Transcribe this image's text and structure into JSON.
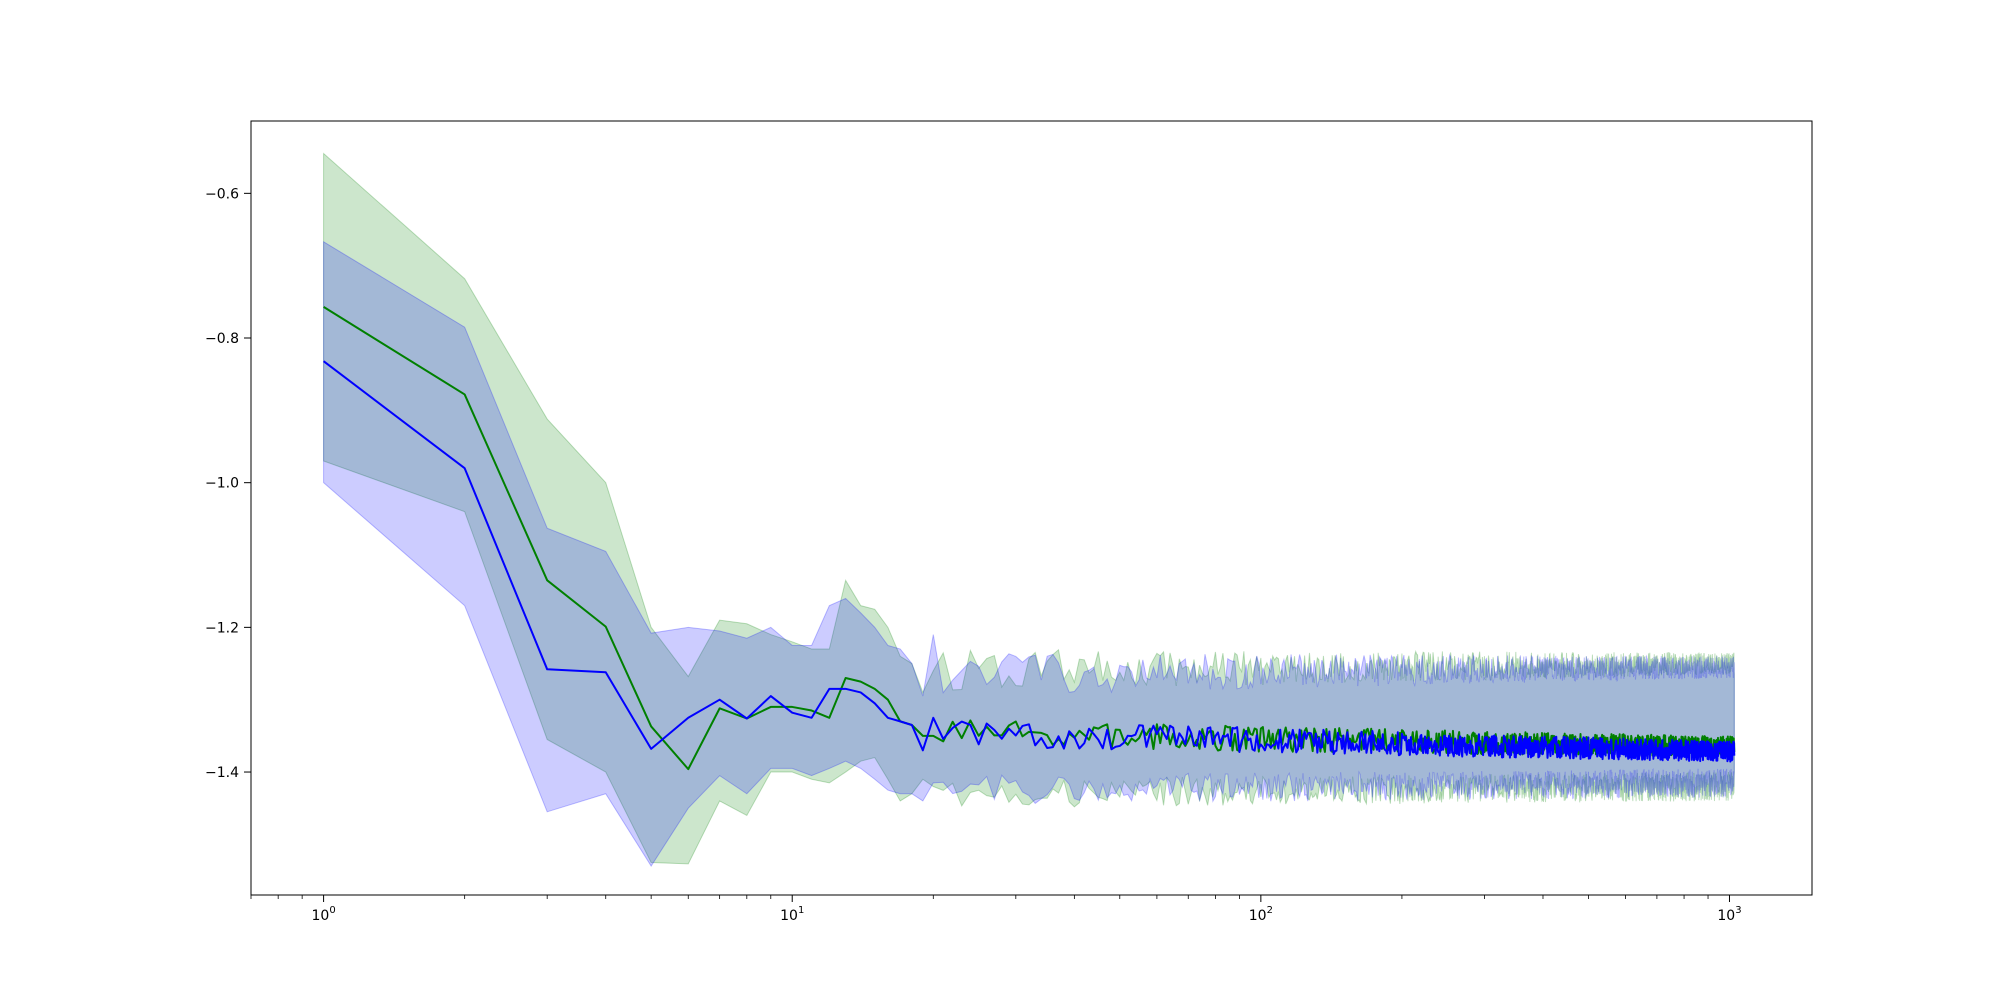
{
  "chart_data": {
    "type": "line",
    "title": "",
    "xlabel": "",
    "ylabel": "",
    "xscale": "log",
    "xlim": [
      0.7,
      1500
    ],
    "ylim": [
      -1.57,
      -0.5
    ],
    "grid": false,
    "legend": "none",
    "x_ticks": [
      {
        "value": 1,
        "base": "10",
        "exp": "0"
      },
      {
        "value": 10,
        "base": "10",
        "exp": "1"
      },
      {
        "value": 100,
        "base": "10",
        "exp": "2"
      },
      {
        "value": 1000,
        "base": "10",
        "exp": "3"
      }
    ],
    "y_ticks": [
      {
        "value": -0.6,
        "label": "−0.6"
      },
      {
        "value": -0.8,
        "label": "−0.8"
      },
      {
        "value": -1.0,
        "label": "−1.0"
      },
      {
        "value": -1.2,
        "label": "−1.2"
      },
      {
        "value": -1.4,
        "label": "−1.4"
      }
    ],
    "x_max": 1024,
    "series": [
      {
        "color": "#008000",
        "band_color": "#008000",
        "band_opacity": 0.2,
        "head": [
          {
            "x": 1,
            "y": -0.757,
            "lo": -0.97,
            "hi": -0.545
          },
          {
            "x": 2,
            "y": -0.878,
            "lo": -1.04,
            "hi": -0.718
          },
          {
            "x": 3,
            "y": -1.135,
            "lo": -1.355,
            "hi": -0.912
          },
          {
            "x": 4,
            "y": -1.199,
            "lo": -1.4,
            "hi": -1.0
          },
          {
            "x": 5,
            "y": -1.337,
            "lo": -1.525,
            "hi": -1.2
          },
          {
            "x": 6,
            "y": -1.396,
            "lo": -1.527,
            "hi": -1.268
          },
          {
            "x": 7,
            "y": -1.312,
            "lo": -1.44,
            "hi": -1.19
          },
          {
            "x": 8,
            "y": -1.326,
            "lo": -1.46,
            "hi": -1.195
          },
          {
            "x": 9,
            "y": -1.31,
            "lo": -1.4,
            "hi": -1.21
          },
          {
            "x": 10,
            "y": -1.31,
            "lo": -1.4,
            "hi": -1.22
          },
          {
            "x": 11,
            "y": -1.315,
            "lo": -1.41,
            "hi": -1.23
          },
          {
            "x": 12,
            "y": -1.325,
            "lo": -1.415,
            "hi": -1.23
          },
          {
            "x": 13,
            "y": -1.27,
            "lo": -1.4,
            "hi": -1.135
          },
          {
            "x": 14,
            "y": -1.275,
            "lo": -1.385,
            "hi": -1.17
          },
          {
            "x": 15,
            "y": -1.285,
            "lo": -1.38,
            "hi": -1.175
          },
          {
            "x": 16,
            "y": -1.3,
            "lo": -1.41,
            "hi": -1.2
          },
          {
            "x": 17,
            "y": -1.33,
            "lo": -1.44,
            "hi": -1.24
          },
          {
            "x": 18,
            "y": -1.335,
            "lo": -1.43,
            "hi": -1.25
          },
          {
            "x": 19,
            "y": -1.35,
            "lo": -1.41,
            "hi": -1.29
          },
          {
            "x": 20,
            "y": -1.35,
            "lo": -1.42,
            "hi": -1.26
          }
        ],
        "tail_mean": -1.347,
        "tail_end_mean": -1.365,
        "tail_band_low": -1.43,
        "tail_band_high": -1.26
      },
      {
        "color": "#0000ff",
        "band_color": "#0000ff",
        "band_opacity": 0.2,
        "head": [
          {
            "x": 1,
            "y": -0.832,
            "lo": -1.0,
            "hi": -0.667
          },
          {
            "x": 2,
            "y": -0.98,
            "lo": -1.17,
            "hi": -0.785
          },
          {
            "x": 3,
            "y": -1.258,
            "lo": -1.455,
            "hi": -1.063
          },
          {
            "x": 4,
            "y": -1.262,
            "lo": -1.43,
            "hi": -1.095
          },
          {
            "x": 5,
            "y": -1.368,
            "lo": -1.53,
            "hi": -1.208
          },
          {
            "x": 6,
            "y": -1.325,
            "lo": -1.45,
            "hi": -1.2
          },
          {
            "x": 7,
            "y": -1.3,
            "lo": -1.405,
            "hi": -1.205
          },
          {
            "x": 8,
            "y": -1.326,
            "lo": -1.43,
            "hi": -1.215
          },
          {
            "x": 9,
            "y": -1.295,
            "lo": -1.395,
            "hi": -1.2
          },
          {
            "x": 10,
            "y": -1.318,
            "lo": -1.395,
            "hi": -1.225
          },
          {
            "x": 11,
            "y": -1.325,
            "lo": -1.405,
            "hi": -1.225
          },
          {
            "x": 12,
            "y": -1.285,
            "lo": -1.395,
            "hi": -1.17
          },
          {
            "x": 13,
            "y": -1.285,
            "lo": -1.385,
            "hi": -1.16
          },
          {
            "x": 14,
            "y": -1.29,
            "lo": -1.395,
            "hi": -1.18
          },
          {
            "x": 15,
            "y": -1.305,
            "lo": -1.41,
            "hi": -1.2
          },
          {
            "x": 16,
            "y": -1.325,
            "lo": -1.425,
            "hi": -1.225
          },
          {
            "x": 17,
            "y": -1.33,
            "lo": -1.43,
            "hi": -1.23
          },
          {
            "x": 18,
            "y": -1.335,
            "lo": -1.43,
            "hi": -1.25
          },
          {
            "x": 19,
            "y": -1.37,
            "lo": -1.44,
            "hi": -1.295
          },
          {
            "x": 20,
            "y": -1.325,
            "lo": -1.415,
            "hi": -1.21
          }
        ],
        "tail_mean": -1.345,
        "tail_end_mean": -1.372,
        "tail_band_low": -1.425,
        "tail_band_high": -1.265
      }
    ]
  }
}
